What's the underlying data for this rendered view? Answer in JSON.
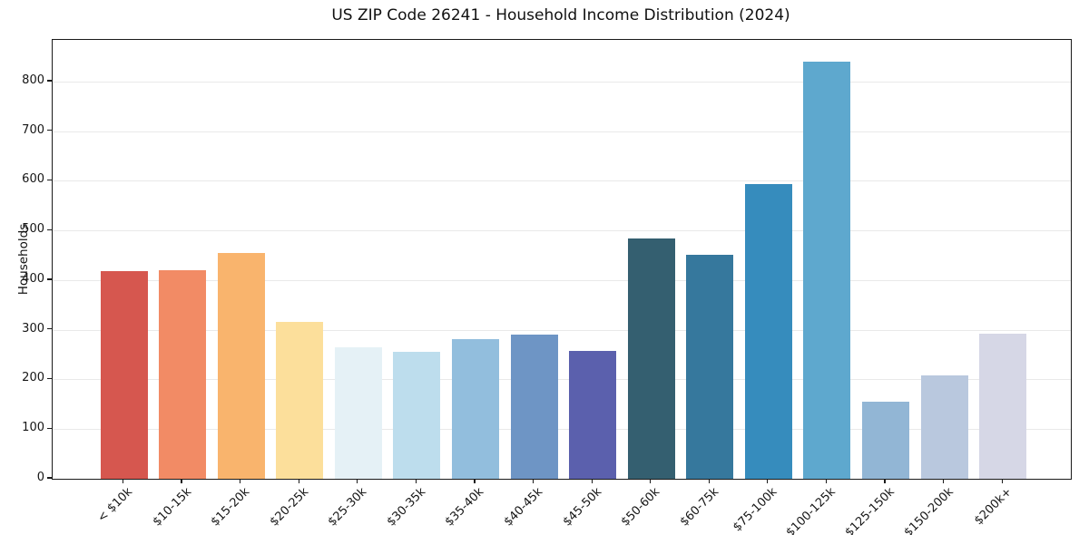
{
  "chart_data": {
    "type": "bar",
    "title": "US ZIP Code 26241 - Household Income Distribution (2024)",
    "xlabel": "",
    "ylabel": "Households",
    "categories": [
      "< $10k",
      "$10-15k",
      "$15-20k",
      "$20-25k",
      "$25-30k",
      "$30-35k",
      "$35-40k",
      "$40-45k",
      "$45-50k",
      "$50-60k",
      "$60-75k",
      "$75-100k",
      "$100-125k",
      "$125-150k",
      "$150-200k",
      "$200k+"
    ],
    "values": [
      418,
      421,
      454,
      316,
      264,
      256,
      281,
      290,
      257,
      484,
      452,
      593,
      841,
      155,
      208,
      293
    ],
    "bar_colors": [
      "#d6574f",
      "#f28b65",
      "#f9b46d",
      "#fcdf9b",
      "#e5f1f6",
      "#bddded",
      "#92bedd",
      "#6e95c5",
      "#5b60ad",
      "#345f70",
      "#36789d",
      "#368cbd",
      "#5ea8ce",
      "#92b6d5",
      "#b9c8de",
      "#d6d7e6"
    ],
    "yticks": [
      0,
      100,
      200,
      300,
      400,
      500,
      600,
      700,
      800
    ],
    "ylim": [
      0,
      884
    ],
    "grid": "horizontal",
    "legend": "none",
    "background": "#ffffff",
    "spine_color": "#1a1a1a",
    "gridline_color": "#e9e9e9"
  }
}
